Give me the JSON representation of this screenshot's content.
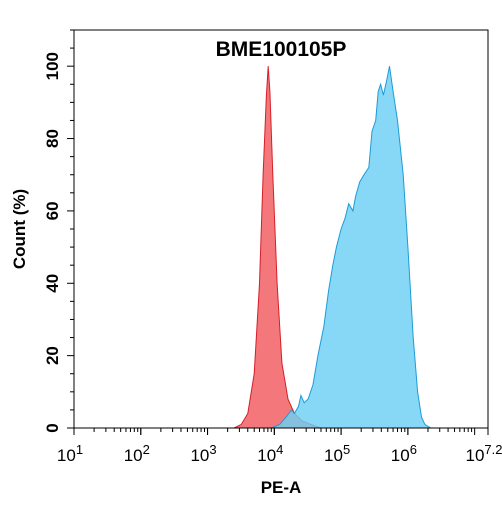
{
  "chart_data": {
    "type": "area",
    "title": "BME100105P",
    "xlabel": "PE-A",
    "ylabel": "Count  (%)",
    "x_scale": "log10",
    "xlim": [
      10,
      15848932
    ],
    "ylim": [
      0,
      110
    ],
    "grid": false,
    "x_ticks": [
      {
        "value": 10,
        "base": "10",
        "exp": "1"
      },
      {
        "value": 100,
        "base": "10",
        "exp": "2"
      },
      {
        "value": 1000,
        "base": "10",
        "exp": "3"
      },
      {
        "value": 10000,
        "base": "10",
        "exp": "4"
      },
      {
        "value": 100000,
        "base": "10",
        "exp": "5"
      },
      {
        "value": 1000000,
        "base": "10",
        "exp": "6"
      },
      {
        "value": 15848932,
        "base": "10",
        "exp": "7.2"
      }
    ],
    "y_ticks": [
      {
        "value": 0,
        "label": "0"
      },
      {
        "value": 20,
        "label": "20"
      },
      {
        "value": 40,
        "label": "40"
      },
      {
        "value": 60,
        "label": "60"
      },
      {
        "value": 80,
        "label": "80"
      },
      {
        "value": 100,
        "label": "100"
      }
    ],
    "series": [
      {
        "color": "#f25a5e",
        "stroke": "#d41f28",
        "points": [
          [
            2500,
            0
          ],
          [
            3200,
            1
          ],
          [
            4000,
            4
          ],
          [
            5000,
            15
          ],
          [
            6000,
            40
          ],
          [
            6800,
            70
          ],
          [
            7600,
            92
          ],
          [
            8100,
            100
          ],
          [
            8600,
            93
          ],
          [
            9500,
            70
          ],
          [
            11000,
            40
          ],
          [
            13000,
            18
          ],
          [
            16000,
            8
          ],
          [
            20000,
            4
          ],
          [
            26000,
            2
          ],
          [
            35000,
            1
          ],
          [
            50000,
            0
          ]
        ]
      },
      {
        "color": "#6dcff4",
        "stroke": "#1d9bd6",
        "points": [
          [
            9000,
            0
          ],
          [
            12000,
            1
          ],
          [
            15000,
            3
          ],
          [
            18000,
            5
          ],
          [
            20000,
            4
          ],
          [
            23000,
            6
          ],
          [
            25000,
            9
          ],
          [
            28000,
            7
          ],
          [
            32000,
            8
          ],
          [
            38000,
            12
          ],
          [
            45000,
            20
          ],
          [
            55000,
            28
          ],
          [
            65000,
            38
          ],
          [
            75000,
            45
          ],
          [
            85000,
            50
          ],
          [
            100000,
            55
          ],
          [
            115000,
            58
          ],
          [
            130000,
            62
          ],
          [
            150000,
            60
          ],
          [
            165000,
            64
          ],
          [
            190000,
            68
          ],
          [
            220000,
            70
          ],
          [
            260000,
            72
          ],
          [
            290000,
            82
          ],
          [
            330000,
            85
          ],
          [
            360000,
            93
          ],
          [
            390000,
            95
          ],
          [
            430000,
            92
          ],
          [
            480000,
            96
          ],
          [
            530000,
            100
          ],
          [
            600000,
            93
          ],
          [
            700000,
            85
          ],
          [
            850000,
            70
          ],
          [
            1000000,
            50
          ],
          [
            1200000,
            25
          ],
          [
            1400000,
            10
          ],
          [
            1600000,
            3
          ],
          [
            1800000,
            1
          ],
          [
            2200000,
            0
          ]
        ]
      }
    ]
  }
}
